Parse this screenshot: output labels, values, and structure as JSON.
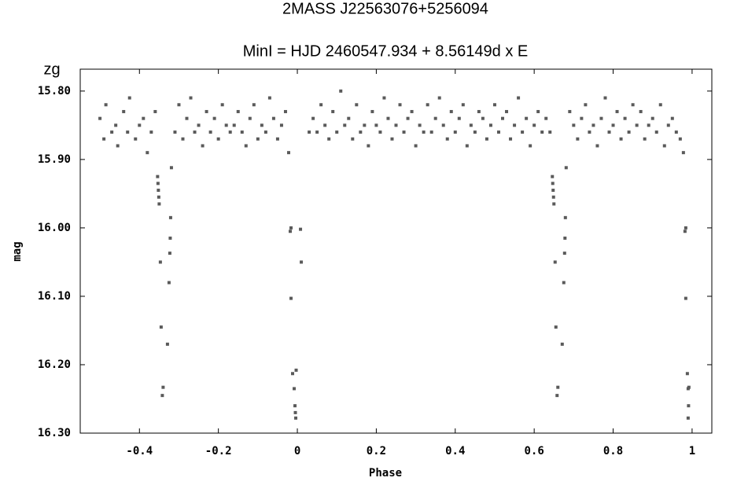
{
  "chart_data": {
    "type": "scatter",
    "title": "2MASS J22563076+5256094",
    "subtitle": "MinI = HJD 2460547.934 + 8.56149d x E",
    "x_label": "Phase",
    "y_label": "mag",
    "xlim": [
      -0.55,
      1.05
    ],
    "ylim": [
      16.3,
      15.768
    ],
    "xticks": [
      -0.4,
      -0.2,
      0,
      0.2,
      0.4,
      0.6,
      0.8,
      1
    ],
    "yticks": [
      {
        "value": 15.8,
        "label": "15.80"
      },
      {
        "value": 15.9,
        "label": "15.90"
      },
      {
        "value": 16.0,
        "label": "16.00"
      },
      {
        "value": 16.1,
        "label": "16.10"
      },
      {
        "value": 16.2,
        "label": "16.20"
      },
      {
        "value": 16.3,
        "label": "16.30"
      }
    ],
    "series": [
      {
        "name": "zg",
        "color": "#5a5a5a",
        "x": [
          -0.5,
          -0.49,
          -0.485,
          -0.47,
          -0.46,
          -0.455,
          -0.44,
          -0.43,
          -0.425,
          -0.41,
          -0.4,
          -0.39,
          -0.38,
          -0.37,
          -0.36,
          -0.31,
          -0.3,
          -0.29,
          -0.28,
          -0.27,
          -0.26,
          -0.25,
          -0.24,
          -0.23,
          -0.22,
          -0.21,
          -0.2,
          -0.19,
          -0.18,
          -0.17,
          -0.16,
          -0.15,
          -0.14,
          -0.13,
          -0.12,
          -0.11,
          -0.1,
          -0.09,
          -0.08,
          -0.07,
          -0.06,
          -0.05,
          -0.04,
          -0.03,
          0.03,
          0.04,
          0.05,
          0.06,
          0.07,
          0.08,
          0.09,
          0.1,
          0.11,
          0.12,
          0.13,
          0.14,
          0.15,
          0.16,
          0.17,
          0.18,
          0.19,
          0.2,
          0.21,
          0.22,
          0.23,
          0.24,
          0.25,
          0.26,
          0.27,
          0.28,
          0.29,
          0.3,
          0.31,
          0.32,
          0.33,
          0.34,
          0.35,
          0.36,
          0.37,
          0.38,
          0.39,
          0.4,
          0.41,
          0.42,
          0.43,
          0.44,
          0.45,
          0.46,
          0.47,
          0.48,
          0.49,
          0.5,
          0.51,
          0.52,
          0.53,
          0.54,
          0.55,
          0.56,
          0.57,
          0.58,
          0.59,
          0.6,
          0.61,
          0.62,
          0.63,
          0.64,
          0.69,
          0.7,
          0.71,
          0.72,
          0.73,
          0.74,
          0.75,
          0.76,
          0.77,
          0.78,
          0.79,
          0.8,
          0.81,
          0.82,
          0.83,
          0.84,
          0.85,
          0.86,
          0.87,
          0.88,
          0.89,
          0.9,
          0.91,
          0.92,
          0.93,
          0.94,
          0.95,
          0.96,
          0.97,
          -0.354,
          -0.353,
          -0.352,
          -0.351,
          -0.35,
          -0.347,
          -0.345,
          -0.342,
          -0.34,
          -0.329,
          -0.325,
          -0.323,
          -0.322,
          -0.321,
          -0.319,
          -0.022,
          -0.018,
          -0.016,
          -0.016,
          -0.012,
          -0.008,
          -0.006,
          -0.005,
          -0.004,
          -0.003,
          0.008,
          0.01,
          0.646,
          0.647,
          0.648,
          0.649,
          0.65,
          0.653,
          0.655,
          0.658,
          0.66,
          0.671,
          0.675,
          0.677,
          0.678,
          0.679,
          0.681,
          0.978,
          0.982,
          0.984,
          0.984,
          0.988,
          0.99,
          0.991,
          0.99,
          0.992
        ],
        "values": [
          15.84,
          15.87,
          15.82,
          15.86,
          15.85,
          15.88,
          15.83,
          15.86,
          15.81,
          15.87,
          15.85,
          15.84,
          15.89,
          15.86,
          15.83,
          15.86,
          15.82,
          15.87,
          15.84,
          15.81,
          15.86,
          15.85,
          15.88,
          15.83,
          15.86,
          15.84,
          15.87,
          15.82,
          15.85,
          15.86,
          15.85,
          15.83,
          15.86,
          15.88,
          15.84,
          15.82,
          15.87,
          15.85,
          15.86,
          15.81,
          15.84,
          15.87,
          15.85,
          15.83,
          15.86,
          15.84,
          15.86,
          15.82,
          15.85,
          15.87,
          15.83,
          15.86,
          15.8,
          15.85,
          15.84,
          15.87,
          15.82,
          15.86,
          15.85,
          15.88,
          15.83,
          15.85,
          15.86,
          15.81,
          15.84,
          15.87,
          15.85,
          15.82,
          15.86,
          15.84,
          15.83,
          15.88,
          15.85,
          15.86,
          15.82,
          15.86,
          15.84,
          15.81,
          15.85,
          15.87,
          15.83,
          15.86,
          15.84,
          15.82,
          15.88,
          15.85,
          15.86,
          15.83,
          15.84,
          15.87,
          15.85,
          15.82,
          15.86,
          15.84,
          15.83,
          15.87,
          15.85,
          15.81,
          15.86,
          15.84,
          15.88,
          15.85,
          15.83,
          15.86,
          15.84,
          15.86,
          15.83,
          15.85,
          15.87,
          15.84,
          15.82,
          15.86,
          15.85,
          15.88,
          15.84,
          15.81,
          15.86,
          15.85,
          15.83,
          15.87,
          15.84,
          15.86,
          15.82,
          15.85,
          15.83,
          15.87,
          15.85,
          15.84,
          15.86,
          15.82,
          15.88,
          15.85,
          15.84,
          15.86,
          15.87,
          15.925,
          15.935,
          15.945,
          15.955,
          15.965,
          16.05,
          16.145,
          16.245,
          16.233,
          16.17,
          16.08,
          16.037,
          16.015,
          15.985,
          15.912,
          15.89,
          16.005,
          16.0,
          16.103,
          16.213,
          16.235,
          16.26,
          16.27,
          16.278,
          16.208,
          16.002,
          16.05,
          15.925,
          15.935,
          15.945,
          15.955,
          15.965,
          16.05,
          16.145,
          16.245,
          16.233,
          16.17,
          16.08,
          16.037,
          16.015,
          15.985,
          15.912,
          15.89,
          16.005,
          16.0,
          16.103,
          16.213,
          16.235,
          16.26,
          16.278,
          16.233
        ]
      }
    ]
  }
}
